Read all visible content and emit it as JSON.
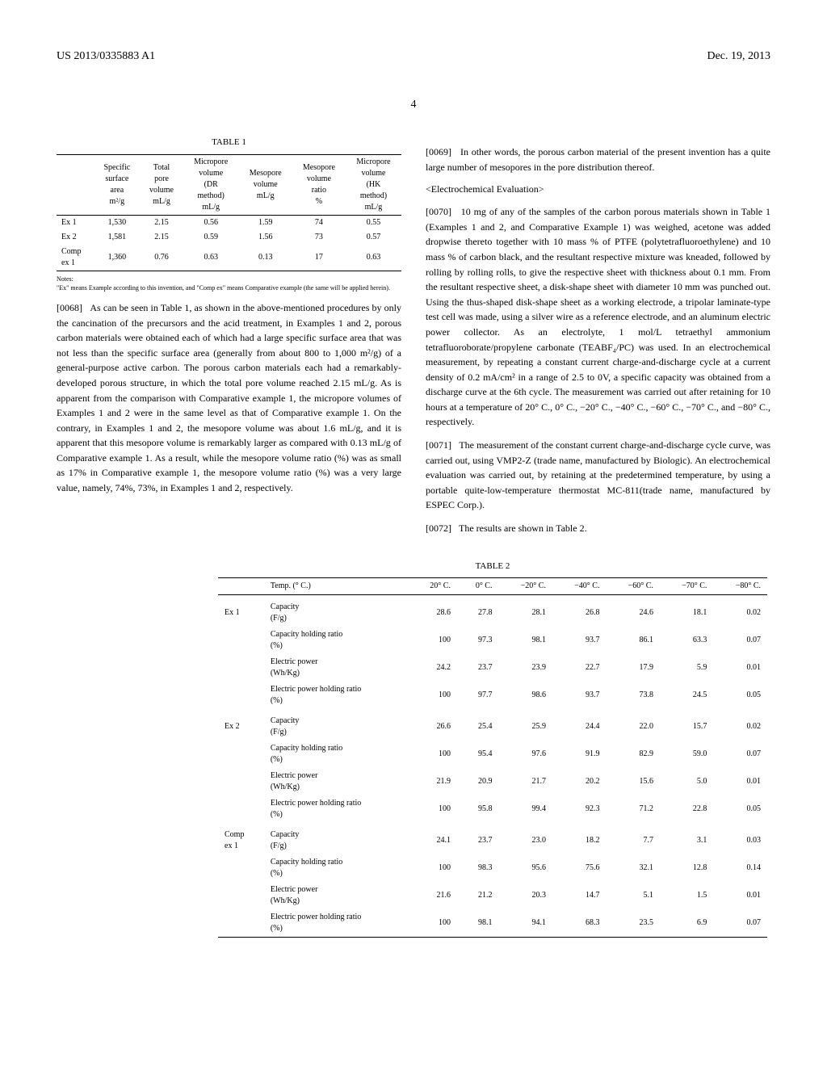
{
  "header": {
    "pub_id": "US 2013/0335883 A1",
    "pub_date": "Dec. 19, 2013",
    "page_num": "4"
  },
  "table1": {
    "title": "TABLE 1",
    "headers": [
      "",
      "Specific surface area m²/g",
      "Total pore volume mL/g",
      "Micropore volume (DR method) mL/g",
      "Mesopore volume mL/g",
      "Mesopore volume ratio %",
      "Micropore volume (HK method) mL/g"
    ],
    "rows": [
      {
        "label": "Ex 1",
        "vals": [
          "1,530",
          "2.15",
          "0.56",
          "1.59",
          "74",
          "0.55"
        ]
      },
      {
        "label": "Ex 2",
        "vals": [
          "1,581",
          "2.15",
          "0.59",
          "1.56",
          "73",
          "0.57"
        ]
      },
      {
        "label": "Comp ex 1",
        "vals": [
          "1,360",
          "0.76",
          "0.63",
          "0.13",
          "17",
          "0.63"
        ]
      }
    ],
    "notes_label": "Notes:",
    "notes": "\"Ex\" means Example according to this invention, and \"Comp ex\" means Comparative example (the same will be applied herein)."
  },
  "para68": {
    "num": "[0068]",
    "text": "As can be seen in Table 1, as shown in the above-mentioned procedures by only the cancination of the precursors and the acid treatment, in Examples 1 and 2, porous carbon materials were obtained each of which had a large specific surface area that was not less than the specific surface area (generally from about 800 to 1,000 m²/g) of a general-purpose active carbon. The porous carbon materials each had a remarkably-developed porous structure, in which the total pore volume reached 2.15 mL/g. As is apparent from the comparison with Comparative example 1, the micropore volumes of Examples 1 and 2 were in the same level as that of Comparative example 1. On the contrary, in Examples 1 and 2, the mesopore volume was about 1.6 mL/g, and it is apparent that this mesopore volume is remarkably larger as compared with 0.13 mL/g of Comparative example 1. As a result, while the mesopore volume ratio (%) was as small as 17% in Comparative example 1, the mesopore volume ratio (%) was a very large value, namely, 74%, 73%, in Examples 1 and 2, respectively."
  },
  "para69": {
    "num": "[0069]",
    "text": "In other words, the porous carbon material of the present invention has a quite large number of mesopores in the pore distribution thereof."
  },
  "section": "<Electrochemical Evaluation>",
  "para70": {
    "num": "[0070]",
    "text": "10 mg of any of the samples of the carbon porous materials shown in Table 1 (Examples 1 and 2, and Comparative Example 1) was weighed, acetone was added dropwise thereto together with 10 mass % of PTFE (polytetrafluoroethylene) and 10 mass % of carbon black, and the resultant respective mixture was kneaded, followed by rolling by rolling rolls, to give the respective sheet with thickness about 0.1 mm. From the resultant respective sheet, a disk-shape sheet with diameter 10 mm was punched out. Using the thus-shaped disk-shape sheet as a working electrode, a tripolar laminate-type test cell was made, using a silver wire as a reference electrode, and an aluminum electric power collector. As an electrolyte, 1 mol/L tetraethyl ammonium tetrafluoroborate/propylene carbonate (TEABF₄/PC) was used. In an electrochemical measurement, by repeating a constant current charge-and-discharge cycle at a current density of 0.2 mA/cm² in a range of 2.5 to 0V, a specific capacity was obtained from a discharge curve at the 6th cycle. The measurement was carried out after retaining for 10 hours at a temperature of 20° C., 0° C., −20° C., −40° C., −60° C., −70° C., and −80° C., respectively."
  },
  "para71": {
    "num": "[0071]",
    "text": "The measurement of the constant current charge-and-discharge cycle curve, was carried out, using VMP2-Z (trade name, manufactured by Biologic). An electrochemical evaluation was carried out, by retaining at the predetermined temperature, by using a portable quite-low-temperature thermostat MC-811(trade name, manufactured by ESPEC Corp.)."
  },
  "para72": {
    "num": "[0072]",
    "text": "The results are shown in Table 2."
  },
  "table2": {
    "title": "TABLE 2",
    "temp_label": "Temp. (° C.)",
    "temps": [
      "20° C.",
      "0° C.",
      "−20° C.",
      "−40° C.",
      "−60° C.",
      "−70° C.",
      "−80° C."
    ],
    "groups": [
      {
        "label": "Ex 1",
        "rows": [
          {
            "metric": "Capacity (F/g)",
            "vals": [
              "28.6",
              "27.8",
              "28.1",
              "26.8",
              "24.6",
              "18.1",
              "0.02"
            ]
          },
          {
            "metric": "Capacity holding ratio (%)",
            "vals": [
              "100",
              "97.3",
              "98.1",
              "93.7",
              "86.1",
              "63.3",
              "0.07"
            ]
          },
          {
            "metric": "Electric power (Wh/Kg)",
            "vals": [
              "24.2",
              "23.7",
              "23.9",
              "22.7",
              "17.9",
              "5.9",
              "0.01"
            ]
          },
          {
            "metric": "Electric power holding ratio (%)",
            "vals": [
              "100",
              "97.7",
              "98.6",
              "93.7",
              "73.8",
              "24.5",
              "0.05"
            ]
          }
        ]
      },
      {
        "label": "Ex 2",
        "rows": [
          {
            "metric": "Capacity (F/g)",
            "vals": [
              "26.6",
              "25.4",
              "25.9",
              "24.4",
              "22.0",
              "15.7",
              "0.02"
            ]
          },
          {
            "metric": "Capacity holding ratio (%)",
            "vals": [
              "100",
              "95.4",
              "97.6",
              "91.9",
              "82.9",
              "59.0",
              "0.07"
            ]
          },
          {
            "metric": "Electric power (Wh/Kg)",
            "vals": [
              "21.9",
              "20.9",
              "21.7",
              "20.2",
              "15.6",
              "5.0",
              "0.01"
            ]
          },
          {
            "metric": "Electric power holding ratio (%)",
            "vals": [
              "100",
              "95.8",
              "99.4",
              "92.3",
              "71.2",
              "22.8",
              "0.05"
            ]
          }
        ]
      },
      {
        "label": "Comp ex 1",
        "rows": [
          {
            "metric": "Capacity (F/g)",
            "vals": [
              "24.1",
              "23.7",
              "23.0",
              "18.2",
              "7.7",
              "3.1",
              "0.03"
            ]
          },
          {
            "metric": "Capacity holding ratio (%)",
            "vals": [
              "100",
              "98.3",
              "95.6",
              "75.6",
              "32.1",
              "12.8",
              "0.14"
            ]
          },
          {
            "metric": "Electric power (Wh/Kg)",
            "vals": [
              "21.6",
              "21.2",
              "20.3",
              "14.7",
              "5.1",
              "1.5",
              "0.01"
            ]
          },
          {
            "metric": "Electric power holding ratio (%)",
            "vals": [
              "100",
              "98.1",
              "94.1",
              "68.3",
              "23.5",
              "6.9",
              "0.07"
            ]
          }
        ]
      }
    ]
  }
}
